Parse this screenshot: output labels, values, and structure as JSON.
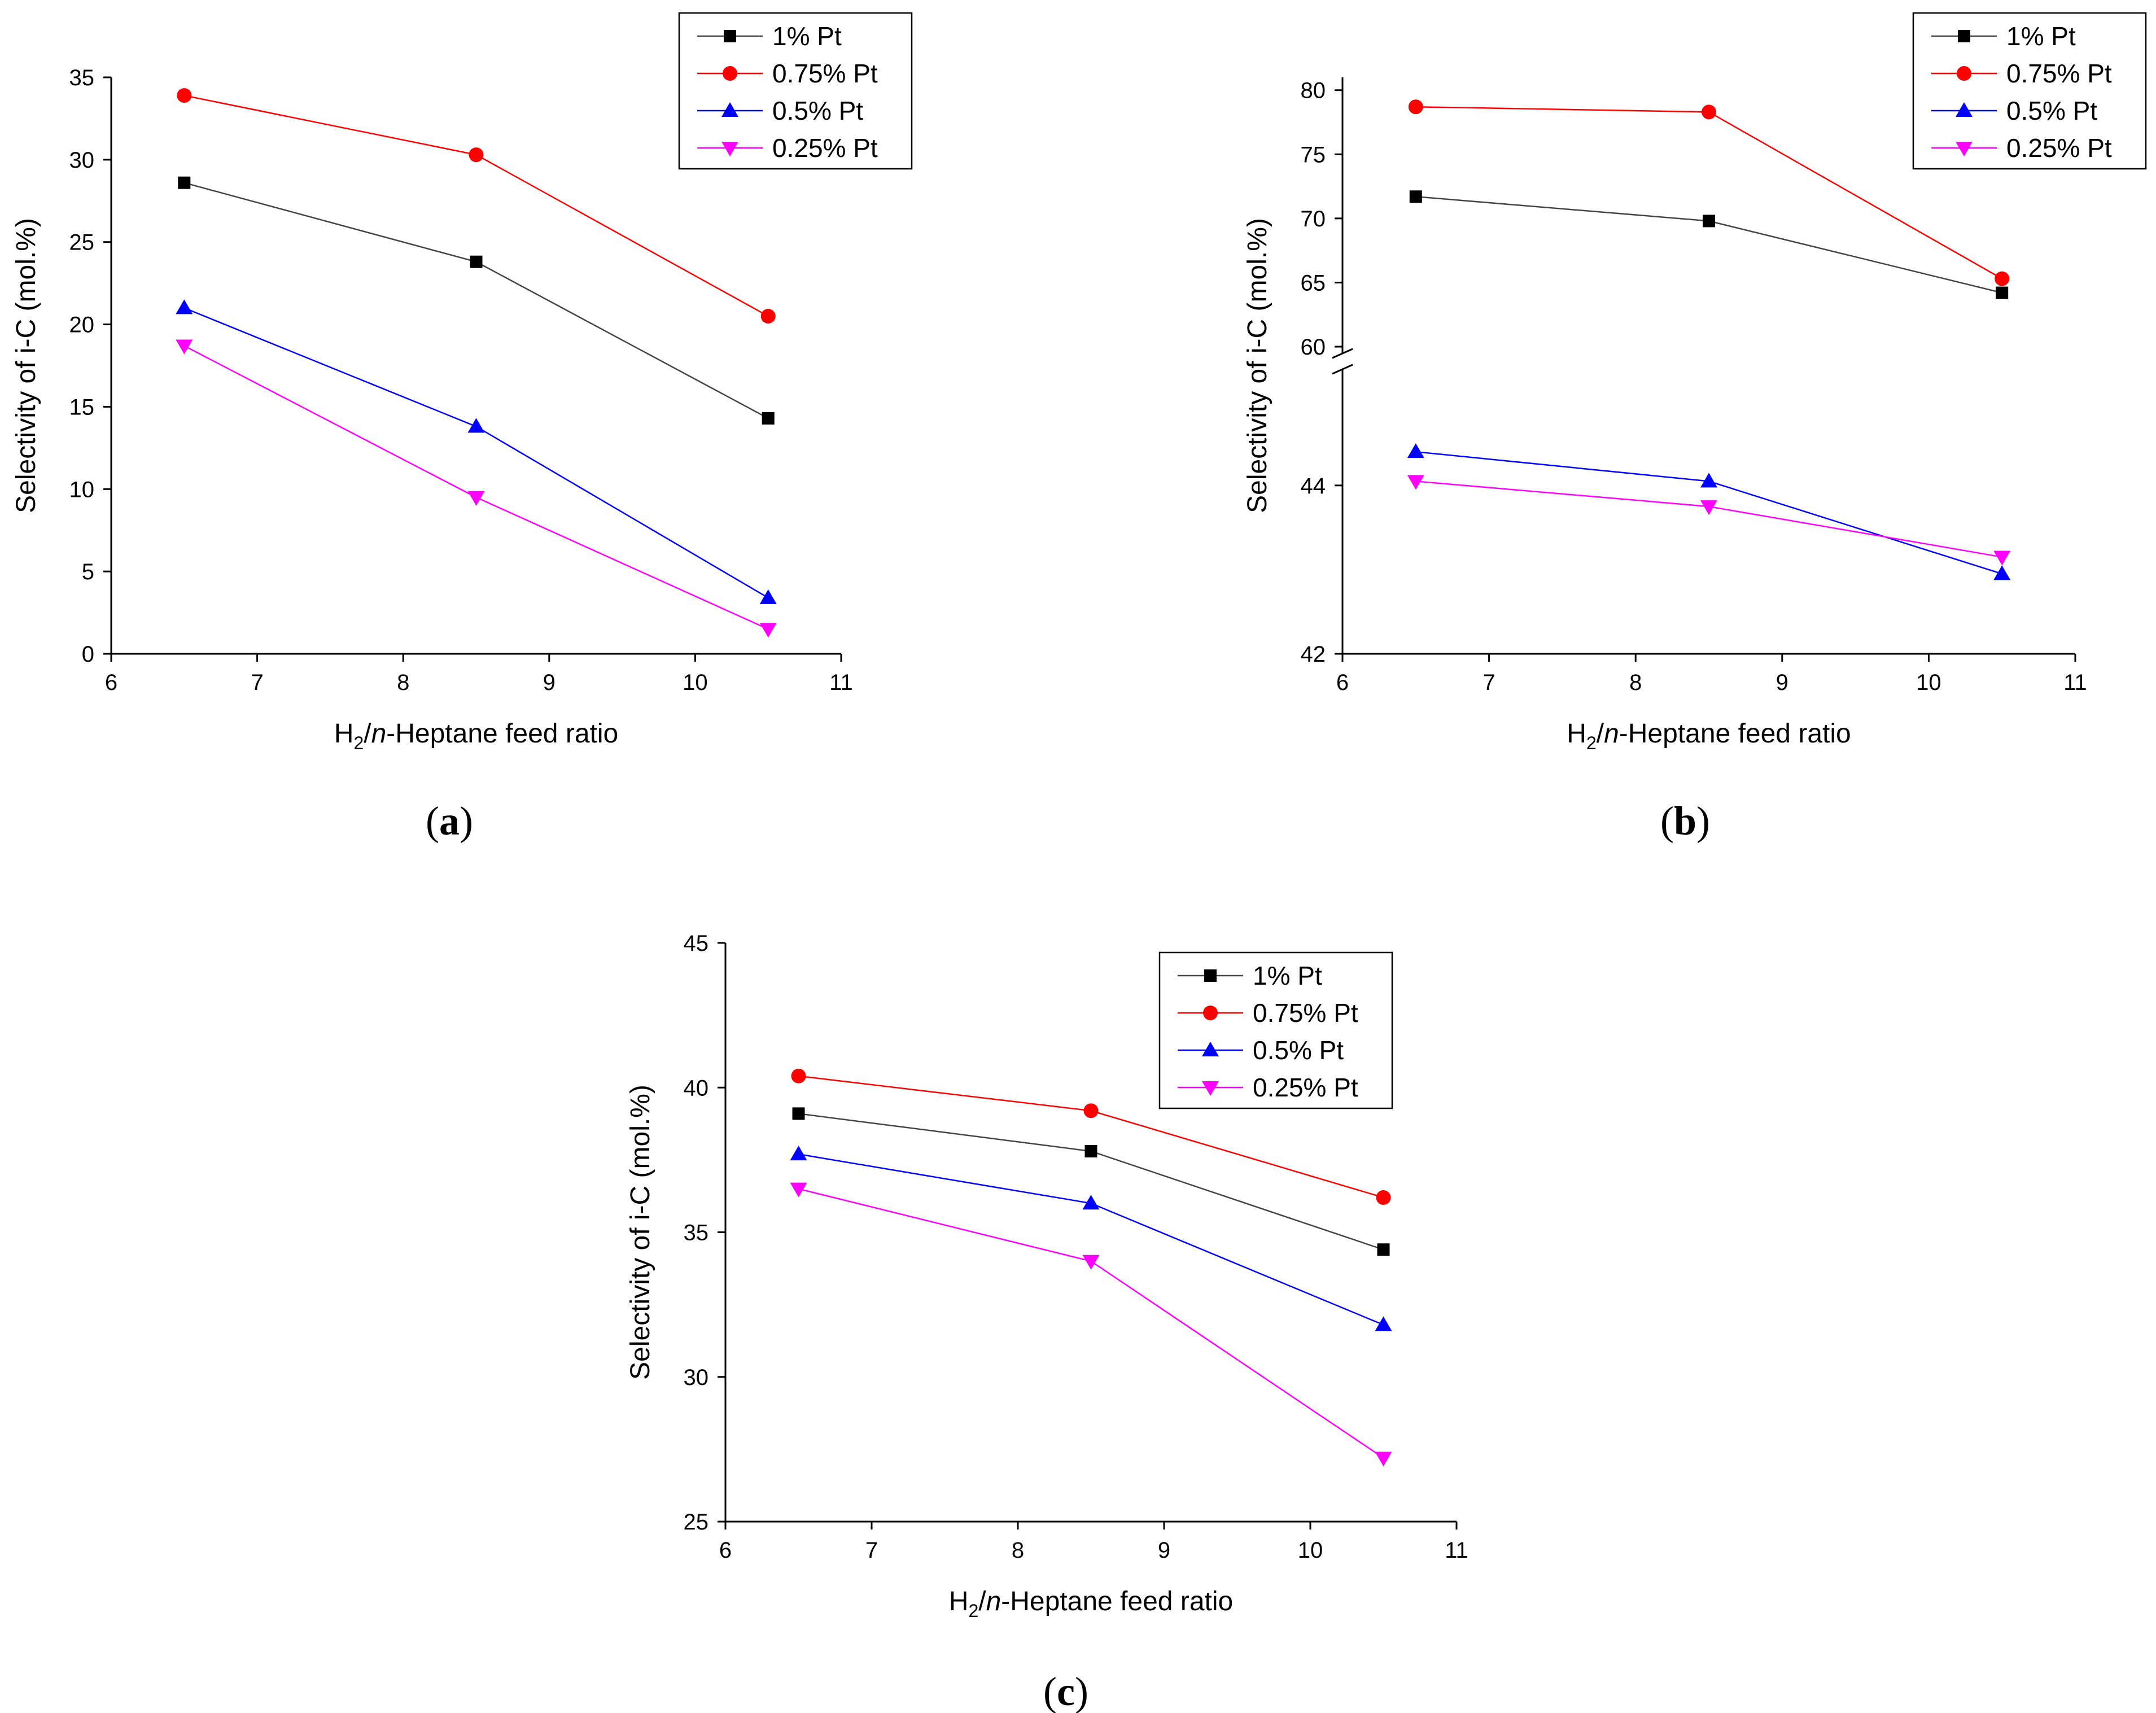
{
  "chart_data": [
    {
      "type": "line",
      "panel_label": "(a)",
      "xlabel": {
        "pre": "H",
        "sub": "2",
        "mid": "/",
        "ital": "n",
        "post": "-Heptane feed ratio"
      },
      "ylabel": "Selectivity of i-C (mol.%)",
      "x_ticks": [
        "6",
        "7",
        "8",
        "9",
        "10",
        "11"
      ],
      "y_ticks": [
        "0",
        "5",
        "10",
        "15",
        "20",
        "25",
        "30",
        "35"
      ],
      "xlim": [
        6,
        11
      ],
      "ylim": [
        0,
        35
      ],
      "x": [
        6.5,
        8.5,
        10.5
      ],
      "legend_position": "top-right",
      "series": [
        {
          "name": "1% Pt",
          "values": [
            28.6,
            23.8,
            14.3
          ],
          "color": "#000000",
          "line_color": "#444444",
          "marker": "square"
        },
        {
          "name": "0.75% Pt",
          "values": [
            33.9,
            30.3,
            20.5
          ],
          "color": "#ff0000",
          "line_color": "#ff0000",
          "marker": "circle"
        },
        {
          "name": "0.5% Pt",
          "values": [
            21.0,
            13.8,
            3.4
          ],
          "color": "#0000ff",
          "line_color": "#0000ff",
          "marker": "triangle-up"
        },
        {
          "name": "0.25% Pt",
          "values": [
            18.7,
            9.5,
            1.5
          ],
          "color": "#ff00ff",
          "line_color": "#ff00ff",
          "marker": "triangle-down"
        }
      ]
    },
    {
      "type": "line",
      "panel_label": "(b)",
      "xlabel": {
        "pre": "H",
        "sub": "2",
        "mid": "/",
        "ital": "n",
        "post": "-Heptane feed ratio"
      },
      "ylabel": "Selectivity of i-C (mol.%)",
      "x_ticks": [
        "6",
        "7",
        "8",
        "9",
        "10",
        "11"
      ],
      "xlim": [
        6,
        11
      ],
      "broken_axis": true,
      "y_upper_ticks": [
        "60",
        "65",
        "70",
        "75",
        "80"
      ],
      "y_upper_range": [
        60,
        81
      ],
      "y_lower_ticks": [
        "42",
        "44"
      ],
      "y_lower_range": [
        42,
        45.3
      ],
      "x": [
        6.5,
        8.5,
        10.5
      ],
      "legend_position": "top-right",
      "series": [
        {
          "name": "1% Pt",
          "values": [
            71.7,
            69.8,
            64.2
          ],
          "color": "#000000",
          "line_color": "#444444",
          "marker": "square"
        },
        {
          "name": "0.75% Pt",
          "values": [
            78.7,
            78.3,
            65.3
          ],
          "color": "#ff0000",
          "line_color": "#ff0000",
          "marker": "circle"
        },
        {
          "name": "0.5% Pt",
          "values": [
            44.4,
            44.05,
            42.95
          ],
          "color": "#0000ff",
          "line_color": "#0000ff",
          "marker": "triangle-up"
        },
        {
          "name": "0.25% Pt",
          "values": [
            44.05,
            43.75,
            43.15
          ],
          "color": "#ff00ff",
          "line_color": "#ff00ff",
          "marker": "triangle-down"
        }
      ]
    },
    {
      "type": "line",
      "panel_label": "(c)",
      "xlabel": {
        "pre": "H",
        "sub": "2",
        "mid": "/",
        "ital": "n",
        "post": "-Heptane feed ratio"
      },
      "ylabel": "Selectivity of i-C (mol.%)",
      "x_ticks": [
        "6",
        "7",
        "8",
        "9",
        "10",
        "11"
      ],
      "y_ticks": [
        "25",
        "30",
        "35",
        "40",
        "45"
      ],
      "xlim": [
        6,
        11
      ],
      "ylim": [
        25,
        45
      ],
      "x": [
        6.5,
        8.5,
        10.5
      ],
      "legend_position": "top-right",
      "series": [
        {
          "name": "1% Pt",
          "values": [
            39.1,
            37.8,
            34.4
          ],
          "color": "#000000",
          "line_color": "#444444",
          "marker": "square"
        },
        {
          "name": "0.75% Pt",
          "values": [
            40.4,
            39.2,
            36.2
          ],
          "color": "#ff0000",
          "line_color": "#ff0000",
          "marker": "circle"
        },
        {
          "name": "0.5% Pt",
          "values": [
            37.7,
            36.0,
            31.8
          ],
          "color": "#0000ff",
          "line_color": "#0000ff",
          "marker": "triangle-up"
        },
        {
          "name": "0.25% Pt",
          "values": [
            36.5,
            34.0,
            27.2
          ],
          "color": "#ff00ff",
          "line_color": "#ff00ff",
          "marker": "triangle-down"
        }
      ]
    }
  ]
}
